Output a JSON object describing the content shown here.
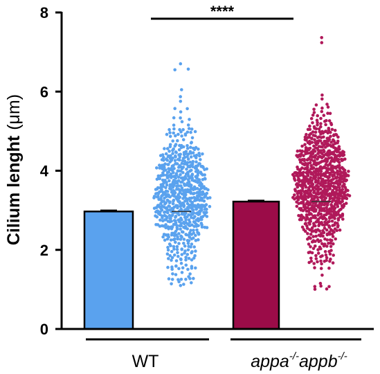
{
  "chart_data": {
    "type": "bar",
    "ylabel": "Cilium lenght",
    "ylabel_unit": "(μm)",
    "ylim": [
      0,
      8
    ],
    "yticks": [
      "0",
      "2",
      "4",
      "6",
      "8"
    ],
    "categories": [
      "WT",
      "appa-/-appb-/-"
    ],
    "group_labels": [
      {
        "base1": "appa",
        "sup1": "-/-",
        "base2": "appb",
        "sup2": "-/-"
      }
    ],
    "bars": [
      {
        "name": "WT",
        "mean": 2.97,
        "sem": 0.03,
        "color": "#5aa2ee",
        "point_color": "#5aa2ee",
        "points_range": [
          1.1,
          6.7
        ]
      },
      {
        "name": "appa-/-appb-/-",
        "mean": 3.22,
        "sem": 0.03,
        "color": "#9b0c48",
        "point_color": "#b0195a",
        "points_range": [
          1.0,
          7.35
        ]
      }
    ],
    "significance": "****",
    "grid": false,
    "legend": "none"
  }
}
